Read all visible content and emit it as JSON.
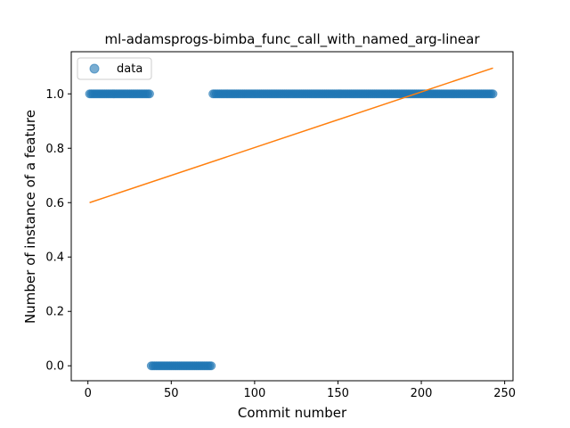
{
  "chart_data": {
    "type": "scatter",
    "title": "ml-adamsprogs-bimba_func_call_with_named_arg-linear",
    "xlabel": "Commit number",
    "ylabel": "Number of instance of a feature",
    "xlim": [
      -10,
      255
    ],
    "ylim": [
      -0.055,
      1.155
    ],
    "xticks": [
      0,
      50,
      100,
      150,
      200,
      250
    ],
    "yticks": [
      0.0,
      0.2,
      0.4,
      0.6,
      0.8,
      1.0
    ],
    "xtick_labels": [
      "0",
      "50",
      "100",
      "150",
      "200",
      "250"
    ],
    "ytick_labels": [
      "0.0",
      "0.2",
      "0.4",
      "0.6",
      "0.8",
      "1.0"
    ],
    "grid": false,
    "legend_position": "top-left",
    "series": [
      {
        "name": "data",
        "kind": "points",
        "color": "#1f77b4",
        "segments": [
          {
            "x_start": 1,
            "x_end": 37,
            "y": 1
          },
          {
            "x_start": 38,
            "x_end": 74,
            "y": 0
          },
          {
            "x_start": 75,
            "x_end": 243,
            "y": 1
          }
        ]
      },
      {
        "kind": "line",
        "color": "#ff7f0e",
        "x": [
          1,
          243
        ],
        "y": [
          0.6,
          1.095
        ]
      }
    ]
  }
}
